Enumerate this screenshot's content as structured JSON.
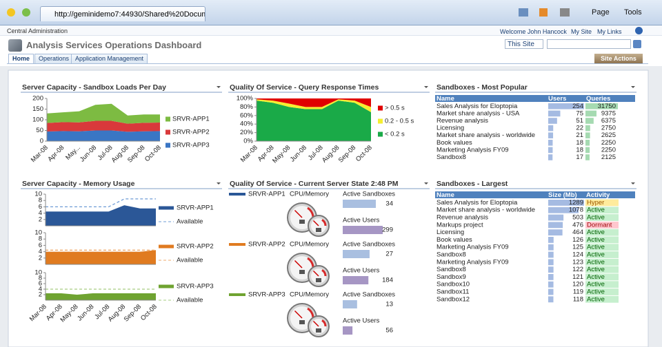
{
  "browser": {
    "url": "http://geminidemo7:44930/Shared%20Documen...",
    "menu": [
      "Page",
      "Tools"
    ]
  },
  "header": {
    "site": "Central Administration",
    "welcome": "Welcome John Hancock",
    "links": [
      "My Site",
      "My Links"
    ],
    "title": "Analysis Services Operations Dashboard",
    "search_scope": "This Site",
    "tabs": [
      "Home",
      "Operations",
      "Application Management"
    ],
    "site_actions": "Site Actions"
  },
  "chart_data": [
    {
      "type": "stacked-area",
      "title": "Server Capacity - Sandbox Loads Per Day",
      "categories": [
        "Mar-08",
        "Apr-08",
        "May...",
        "Jun-08",
        "Jul-08",
        "Aug-08",
        "Sep-08",
        "Oct-08"
      ],
      "ylim": [
        0,
        200
      ],
      "yticks": [
        0,
        50,
        100,
        150,
        200
      ],
      "series": [
        {
          "name": "SRVR-APP1",
          "color": "#7dbb42",
          "values": [
            45,
            46,
            52,
            75,
            80,
            38,
            39,
            38
          ]
        },
        {
          "name": "SRVR-APP2",
          "color": "#d9393b",
          "values": [
            40,
            42,
            42,
            45,
            45,
            38,
            40,
            40
          ]
        },
        {
          "name": "SRVR-APP3",
          "color": "#3a76c4",
          "values": [
            45,
            47,
            46,
            50,
            50,
            44,
            46,
            47
          ]
        }
      ]
    },
    {
      "type": "stacked-area",
      "title": "Quality Of Service - Query Response Times",
      "categories": [
        "Mar-08",
        "Apr-08",
        "May-08",
        "Jun-08",
        "Jul-08",
        "Aug-08",
        "Sep-08",
        "Oct-08"
      ],
      "ylim": [
        0,
        100
      ],
      "yticks": [
        {
          "value": 0,
          "label": "0%"
        },
        {
          "value": 20,
          "label": "20%"
        },
        {
          "value": 40,
          "label": "40%"
        },
        {
          "value": 60,
          "label": "60%"
        },
        {
          "value": 80,
          "label": "80%"
        },
        {
          "value": 100,
          "label": "100%"
        }
      ],
      "series": [
        {
          "name": "> 0.5 s",
          "color": "#e00000",
          "values": [
            2,
            5,
            12,
            20,
            20,
            2,
            5,
            20
          ]
        },
        {
          "name": "0.2 - 0.5 s",
          "color": "#f5ee30",
          "values": [
            3,
            5,
            8,
            5,
            5,
            3,
            5,
            12
          ]
        },
        {
          "name": "< 0.2 s",
          "color": "#1aaa48",
          "values": [
            95,
            90,
            80,
            75,
            75,
            95,
            90,
            68
          ]
        }
      ]
    },
    {
      "type": "area",
      "title": "Server Capacity - Memory Usage",
      "categories": [
        "Mar-08",
        "Apr-08",
        "May-08",
        "Jun-08",
        "Jul-08",
        "Aug-08",
        "Sep-08",
        "Oct-08"
      ],
      "ylim": [
        0,
        10
      ],
      "yticks": [
        2,
        4,
        6,
        8,
        10
      ],
      "panels": [
        {
          "series": [
            {
              "name": "SRVR-APP1",
              "color": "#2b5797",
              "values": [
                4.5,
                4.5,
                4.5,
                4.5,
                4.5,
                6.5,
                5.5,
                5.5
              ]
            },
            {
              "name": "Available",
              "color": "#6d9bd6",
              "dashed": true,
              "values": [
                6,
                6,
                6,
                6,
                6,
                8.5,
                8.5,
                8.5
              ]
            }
          ]
        },
        {
          "series": [
            {
              "name": "SRVR-APP2",
              "color": "#e07b20",
              "values": [
                4,
                4,
                4,
                4,
                4,
                4,
                4,
                4.5
              ]
            },
            {
              "name": "Available",
              "color": "#efab6c",
              "dashed": true,
              "values": [
                4.5,
                4.5,
                4.5,
                4.5,
                4.5,
                4.5,
                4.5,
                4.5
              ]
            }
          ]
        },
        {
          "series": [
            {
              "name": "SRVR-APP3",
              "color": "#6fa331",
              "values": [
                2.5,
                2.5,
                2,
                2.5,
                2.5,
                2.5,
                2.5,
                2.5
              ]
            },
            {
              "name": "Available",
              "color": "#a6cc80",
              "dashed": true,
              "values": [
                4,
                4,
                4,
                4,
                4,
                4,
                4,
                4
              ]
            }
          ]
        }
      ]
    }
  ],
  "server_state": {
    "title": "Quality Of Service - Current Server State 2:48 PM",
    "gauge_label": "CPU/Memory",
    "sandboxes_label": "Active Sandboxes",
    "users_label": "Active Users",
    "rows": [
      {
        "server": "SRVR-APP1",
        "color": "#2b5797",
        "sandboxes": 34,
        "users": 299
      },
      {
        "server": "SRVR-APP2",
        "color": "#e07b20",
        "sandboxes": 27,
        "users": 184
      },
      {
        "server": "SRVR-APP3",
        "color": "#6fa331",
        "sandboxes": 13,
        "users": 56
      }
    ]
  },
  "tables": [
    {
      "title": "Sandboxes - Most Popular",
      "columns": [
        "Name",
        "Users",
        "Queries"
      ],
      "rows": [
        [
          "Sales Analysis for Eloptopia",
          254,
          31750
        ],
        [
          "Market share analysis - USA",
          75,
          9375
        ],
        [
          "Revenue analysis",
          51,
          6375
        ],
        [
          "Licensing",
          22,
          2750
        ],
        [
          "Market share analysis - worldwide",
          21,
          2625
        ],
        [
          "Book values",
          18,
          2250
        ],
        [
          "Marketing Analysis FY09",
          18,
          2250
        ],
        [
          "Sandbox8",
          17,
          2125
        ]
      ]
    },
    {
      "title": "Sandboxes - Largest",
      "columns": [
        "Name",
        "Size (Mb)",
        "Activity"
      ],
      "activity_styles": {
        "Hyper": [
          "#ffeb9c",
          "#9c5700"
        ],
        "Active": [
          "#c6efce",
          "#006100"
        ],
        "Dormant": [
          "#ffc7ce",
          "#9c0006"
        ]
      },
      "rows": [
        [
          "Sales Analysis for Eloptopia",
          1289,
          "Hyper"
        ],
        [
          "Market share analysis - worldwide",
          1078,
          "Active"
        ],
        [
          "Revenue analysis",
          503,
          "Active"
        ],
        [
          "Markups project",
          476,
          "Dormant"
        ],
        [
          "Licensing",
          464,
          "Active"
        ],
        [
          "Book values",
          126,
          "Active"
        ],
        [
          "Marketing Analysis FY09",
          125,
          "Active"
        ],
        [
          "Sandbox8",
          124,
          "Active"
        ],
        [
          "Marketing Analysis FY09",
          123,
          "Active"
        ],
        [
          "Sandbox8",
          122,
          "Active"
        ],
        [
          "Sandbox9",
          121,
          "Active"
        ],
        [
          "Sandbox10",
          120,
          "Active"
        ],
        [
          "Sandbox11",
          119,
          "Active"
        ],
        [
          "Sandbox12",
          118,
          "Active"
        ]
      ]
    }
  ]
}
